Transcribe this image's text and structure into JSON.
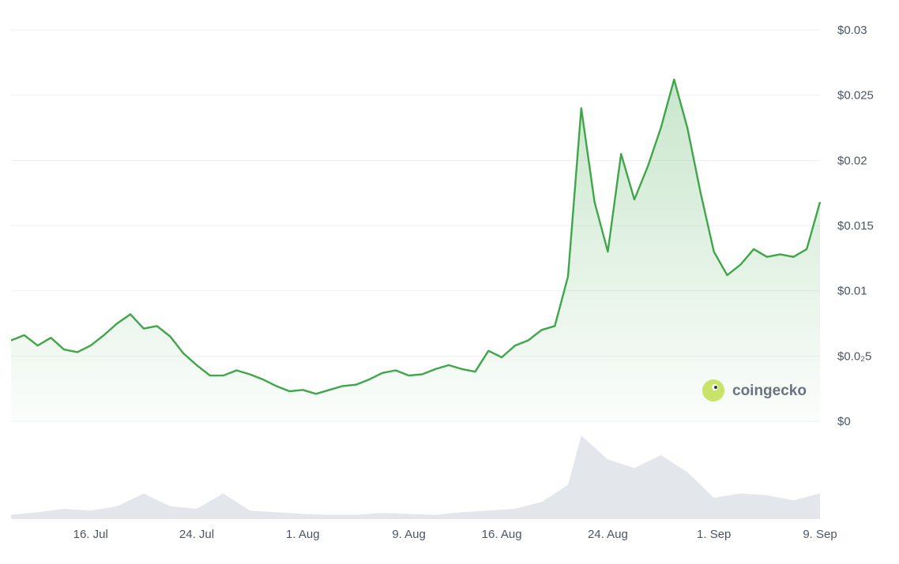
{
  "watermark": {
    "text": "coingecko",
    "icon": "gecko-icon"
  },
  "colors": {
    "line": "#3fa64a",
    "volume": "#e3e7ec",
    "grid": "#eef0f3",
    "text": "#4b5563"
  },
  "chart_data": {
    "type": "line",
    "grid": true,
    "y_tick_labels": [
      "$0",
      "$0.0₂5",
      "$0.01",
      "$0.015",
      "$0.02",
      "$0.025",
      "$0.03"
    ],
    "y_tick_values": [
      0,
      0.005,
      0.01,
      0.015,
      0.02,
      0.025,
      0.03
    ],
    "ylim": [
      0,
      0.03
    ],
    "x_tick_labels": [
      "16. Jul",
      "24. Jul",
      "1. Aug",
      "9. Aug",
      "16. Aug",
      "24. Aug",
      "1. Sep",
      "9. Sep"
    ],
    "x_tick_dates": [
      "07-16",
      "07-24",
      "08-01",
      "08-09",
      "08-16",
      "08-24",
      "09-01",
      "09-09"
    ],
    "xlim": [
      "07-10",
      "09-09"
    ],
    "price_series": {
      "x": [
        "07-10",
        "07-11",
        "07-12",
        "07-13",
        "07-14",
        "07-15",
        "07-16",
        "07-17",
        "07-18",
        "07-19",
        "07-20",
        "07-21",
        "07-22",
        "07-23",
        "07-24",
        "07-25",
        "07-26",
        "07-27",
        "07-28",
        "07-29",
        "07-30",
        "07-31",
        "08-01",
        "08-02",
        "08-03",
        "08-04",
        "08-05",
        "08-06",
        "08-07",
        "08-08",
        "08-09",
        "08-10",
        "08-11",
        "08-12",
        "08-13",
        "08-14",
        "08-15",
        "08-16",
        "08-17",
        "08-18",
        "08-19",
        "08-20",
        "08-21",
        "08-22",
        "08-23",
        "08-24",
        "08-25",
        "08-26",
        "08-27",
        "08-28",
        "08-29",
        "08-30",
        "08-31",
        "09-01",
        "09-02",
        "09-03",
        "09-04",
        "09-05",
        "09-06",
        "09-07",
        "09-08",
        "09-09"
      ],
      "values": [
        0.0062,
        0.0066,
        0.0058,
        0.0064,
        0.0055,
        0.0053,
        0.0058,
        0.0066,
        0.0075,
        0.0082,
        0.0071,
        0.0073,
        0.0065,
        0.0052,
        0.0043,
        0.0035,
        0.0035,
        0.0039,
        0.0036,
        0.0032,
        0.0027,
        0.0023,
        0.0024,
        0.0021,
        0.0024,
        0.0027,
        0.0028,
        0.0032,
        0.0037,
        0.0039,
        0.0035,
        0.0036,
        0.004,
        0.0043,
        0.004,
        0.0038,
        0.0054,
        0.0049,
        0.0058,
        0.0062,
        0.007,
        0.0073,
        0.0111,
        0.024,
        0.0168,
        0.013,
        0.0205,
        0.017,
        0.0195,
        0.0225,
        0.0262,
        0.0225,
        0.0175,
        0.013,
        0.0112,
        0.012,
        0.0132,
        0.0126,
        0.0128,
        0.0126,
        0.0132,
        0.0168
      ]
    },
    "volume_series": {
      "x": [
        "07-10",
        "07-12",
        "07-14",
        "07-16",
        "07-18",
        "07-20",
        "07-22",
        "07-24",
        "07-26",
        "07-28",
        "07-30",
        "08-01",
        "08-03",
        "08-05",
        "08-07",
        "08-09",
        "08-11",
        "08-13",
        "08-15",
        "08-17",
        "08-19",
        "08-21",
        "08-22",
        "08-24",
        "08-26",
        "08-28",
        "08-30",
        "09-01",
        "09-03",
        "09-05",
        "09-07",
        "09-09"
      ],
      "values": [
        0.05,
        0.08,
        0.12,
        0.1,
        0.15,
        0.3,
        0.15,
        0.12,
        0.3,
        0.1,
        0.08,
        0.06,
        0.05,
        0.05,
        0.07,
        0.06,
        0.05,
        0.08,
        0.1,
        0.12,
        0.2,
        0.4,
        0.98,
        0.7,
        0.6,
        0.75,
        0.55,
        0.25,
        0.3,
        0.28,
        0.22,
        0.3
      ]
    }
  }
}
